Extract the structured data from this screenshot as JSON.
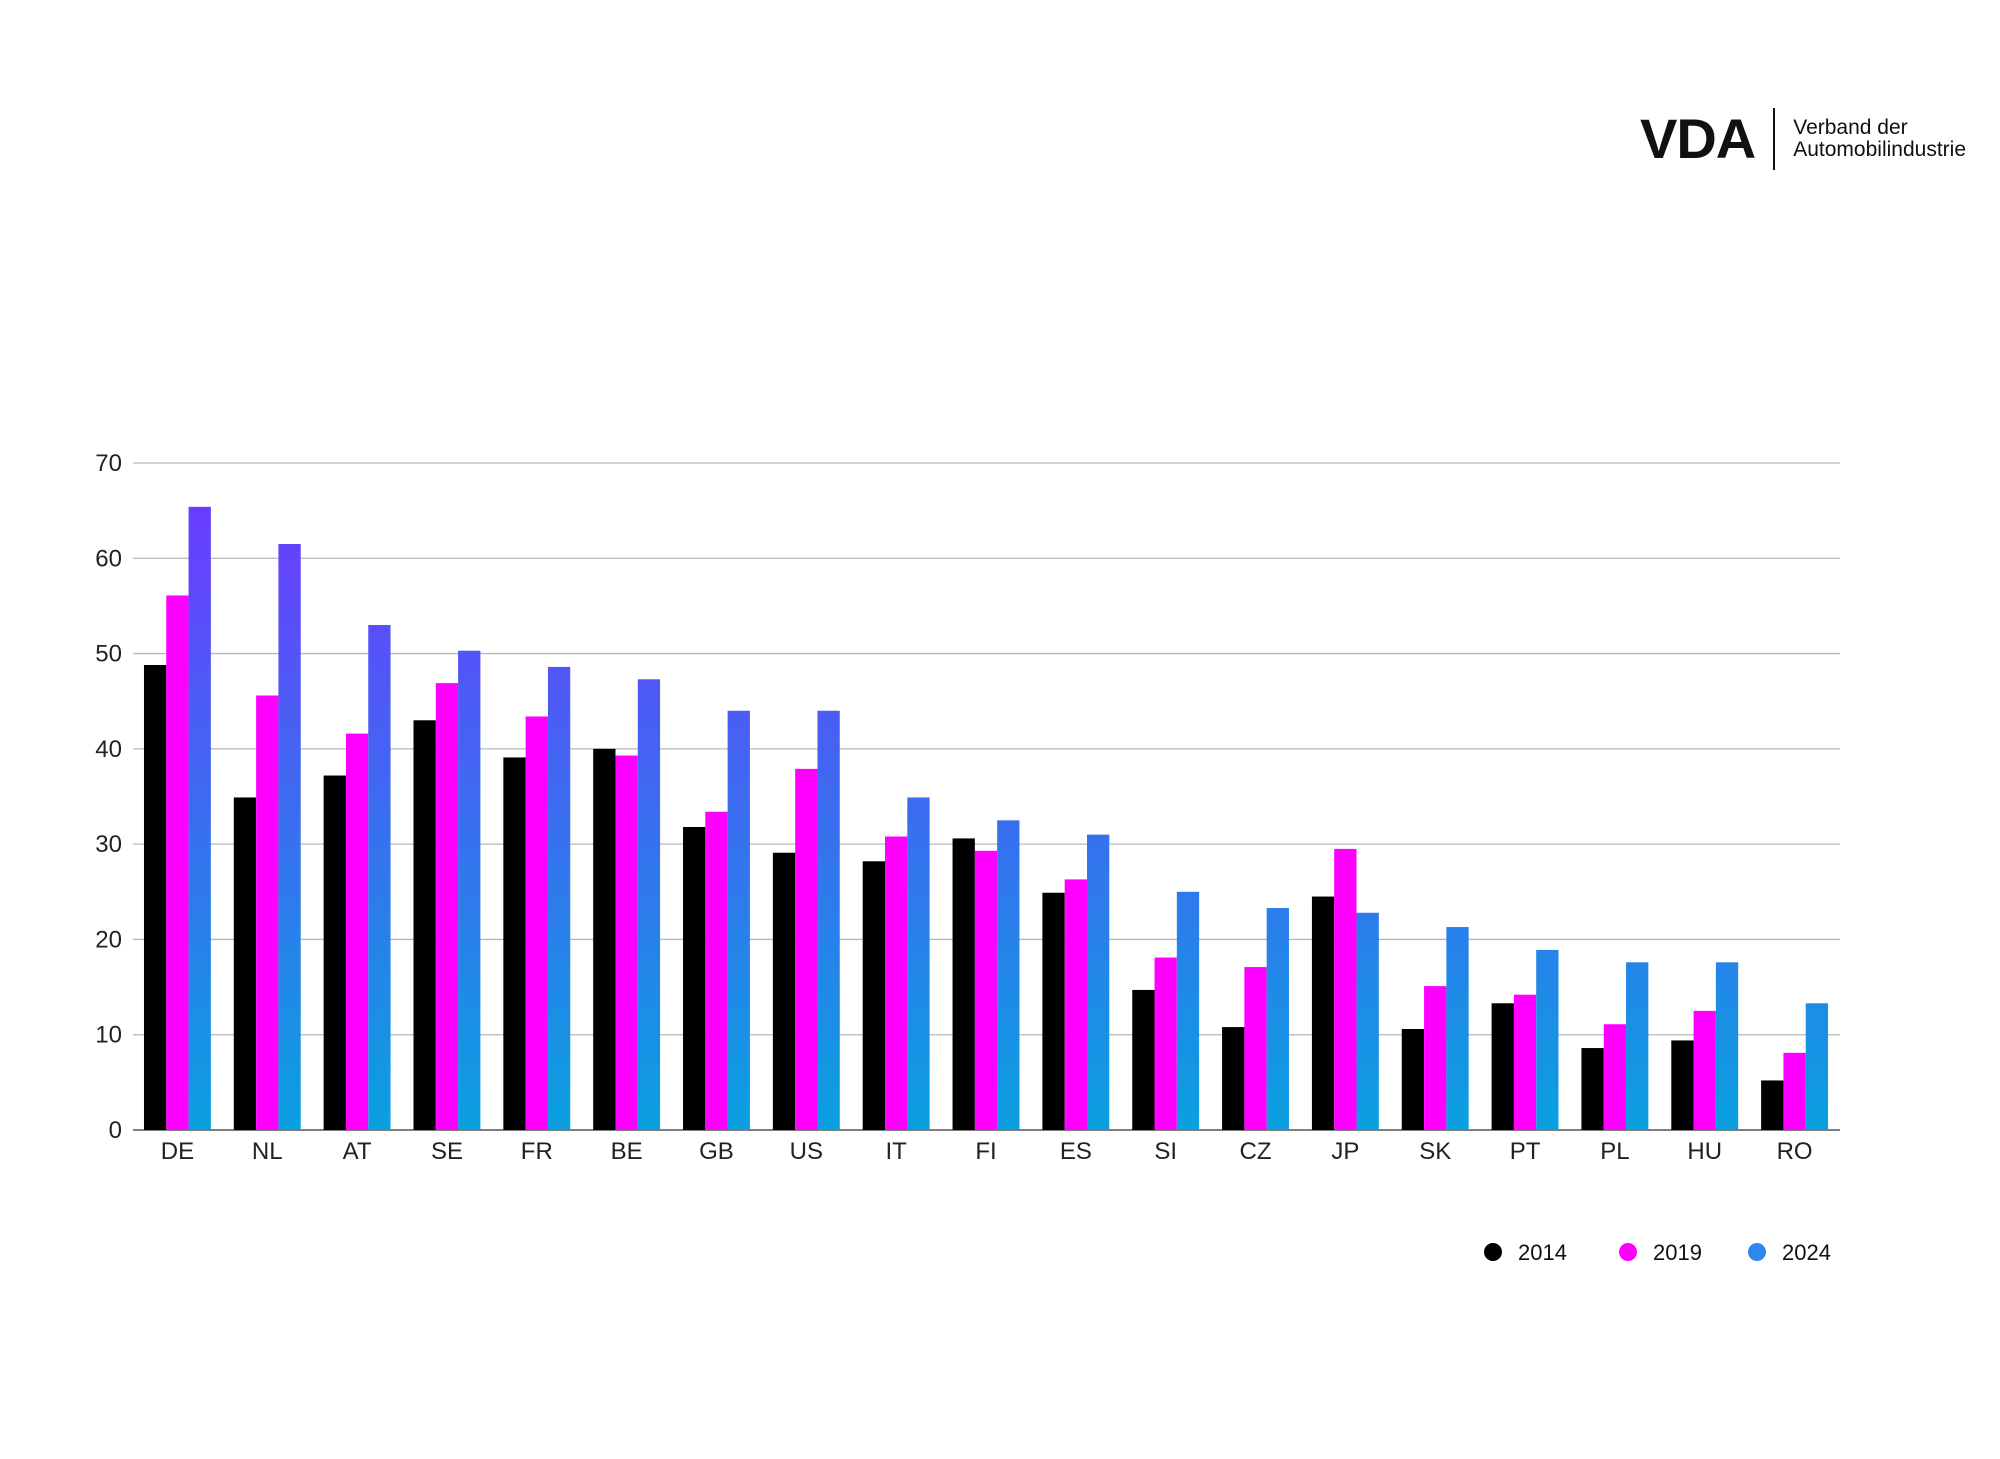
{
  "logo": {
    "mark": "VDA",
    "line1": "Verband der",
    "line2": "Automobilindustrie"
  },
  "colors": {
    "2014": "#000000",
    "2019": "#ff00ff",
    "2024_top": "#6a3cff",
    "2024_bottom": "#0aa0e0",
    "grid": "#b8b8b8"
  },
  "chart_data": {
    "type": "bar",
    "title": "",
    "xlabel": "",
    "ylabel": "",
    "ylim": [
      0,
      70
    ],
    "yticks": [
      0,
      10,
      20,
      30,
      40,
      50,
      60,
      70
    ],
    "grid": true,
    "legend_position": "bottom-right",
    "categories": [
      "DE",
      "NL",
      "AT",
      "SE",
      "FR",
      "BE",
      "GB",
      "US",
      "IT",
      "FI",
      "ES",
      "SI",
      "CZ",
      "JP",
      "SK",
      "PT",
      "PL",
      "HU",
      "RO"
    ],
    "series": [
      {
        "name": "2014",
        "values": [
          48.8,
          34.9,
          37.2,
          43.0,
          39.1,
          40.0,
          31.8,
          29.1,
          28.2,
          30.6,
          24.9,
          14.7,
          10.8,
          24.5,
          10.6,
          13.3,
          8.6,
          9.4,
          5.2
        ]
      },
      {
        "name": "2019",
        "values": [
          56.1,
          45.6,
          41.6,
          46.9,
          43.4,
          39.3,
          33.4,
          37.9,
          30.8,
          29.3,
          26.3,
          18.1,
          17.1,
          29.5,
          15.1,
          14.2,
          11.1,
          12.5,
          8.1
        ]
      },
      {
        "name": "2024",
        "values": [
          65.4,
          61.5,
          53.0,
          50.3,
          48.6,
          47.3,
          44.0,
          44.0,
          34.9,
          32.5,
          31.0,
          25.0,
          23.3,
          22.8,
          21.3,
          18.9,
          17.6,
          17.6,
          13.3
        ]
      }
    ]
  }
}
